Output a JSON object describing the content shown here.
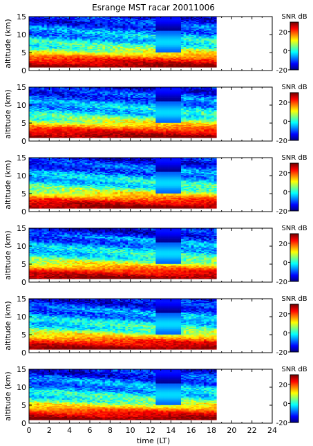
{
  "chart_data": {
    "type": "heatmap",
    "title": "Esrange MST racar 20011006",
    "xlabel": "time (LT)",
    "x_ticks": [
      "0",
      "2",
      "4",
      "6",
      "8",
      "10",
      "12",
      "14",
      "16",
      "18",
      "20",
      "22",
      "24"
    ],
    "xlim": [
      0,
      24
    ],
    "data_time_range": [
      0,
      18.5
    ],
    "colormap": "jet",
    "panels": [
      {
        "ylabel": "altitude (km)",
        "ylim": [
          0,
          15
        ],
        "y_ticks": [
          "0",
          "5",
          "10",
          "15"
        ],
        "colorbar": {
          "label": "SNR dB",
          "range": [
            -20,
            30
          ],
          "ticks": [
            "-20",
            "0",
            "20"
          ]
        },
        "snr_profile_db": [
          {
            "alt_km": 1,
            "snr": 30
          },
          {
            "alt_km": 2,
            "snr": 26
          },
          {
            "alt_km": 3,
            "snr": 22
          },
          {
            "alt_km": 4,
            "snr": 16
          },
          {
            "alt_km": 5,
            "snr": 10
          },
          {
            "alt_km": 6,
            "snr": 4
          },
          {
            "alt_km": 7,
            "snr": 0
          },
          {
            "alt_km": 8,
            "snr": -2
          },
          {
            "alt_km": 9,
            "snr": -4
          },
          {
            "alt_km": 10,
            "snr": -6
          },
          {
            "alt_km": 12,
            "snr": -10
          },
          {
            "alt_km": 14,
            "snr": -14
          }
        ]
      },
      {
        "ylabel": "altitude (km)",
        "ylim": [
          0,
          15
        ],
        "y_ticks": [
          "0",
          "5",
          "10",
          "15"
        ],
        "colorbar": {
          "label": "SNR dB",
          "range": [
            -20,
            30
          ],
          "ticks": [
            "-20",
            "0",
            "20"
          ]
        },
        "snr_profile_db": [
          {
            "alt_km": 1,
            "snr": 30
          },
          {
            "alt_km": 2,
            "snr": 26
          },
          {
            "alt_km": 3,
            "snr": 22
          },
          {
            "alt_km": 4,
            "snr": 16
          },
          {
            "alt_km": 5,
            "snr": 10
          },
          {
            "alt_km": 6,
            "snr": 4
          },
          {
            "alt_km": 7,
            "snr": 0
          },
          {
            "alt_km": 8,
            "snr": -2
          },
          {
            "alt_km": 9,
            "snr": -4
          },
          {
            "alt_km": 10,
            "snr": -6
          },
          {
            "alt_km": 12,
            "snr": -10
          },
          {
            "alt_km": 14,
            "snr": -14
          }
        ]
      },
      {
        "ylabel": "altitude (km)",
        "ylim": [
          0,
          15
        ],
        "y_ticks": [
          "0",
          "5",
          "10",
          "15"
        ],
        "colorbar": {
          "label": "SNR dB",
          "range": [
            -20,
            30
          ],
          "ticks": [
            "-20",
            "0",
            "20"
          ]
        },
        "snr_profile_db": [
          {
            "alt_km": 1,
            "snr": 30
          },
          {
            "alt_km": 2,
            "snr": 26
          },
          {
            "alt_km": 3,
            "snr": 22
          },
          {
            "alt_km": 4,
            "snr": 16
          },
          {
            "alt_km": 5,
            "snr": 10
          },
          {
            "alt_km": 6,
            "snr": 4
          },
          {
            "alt_km": 7,
            "snr": 0
          },
          {
            "alt_km": 8,
            "snr": -2
          },
          {
            "alt_km": 9,
            "snr": -4
          },
          {
            "alt_km": 10,
            "snr": -6
          },
          {
            "alt_km": 12,
            "snr": -10
          },
          {
            "alt_km": 14,
            "snr": -14
          }
        ]
      },
      {
        "ylabel": "altitude (km)",
        "ylim": [
          0,
          15
        ],
        "y_ticks": [
          "0",
          "5",
          "10",
          "15"
        ],
        "colorbar": {
          "label": "SNR dB",
          "range": [
            -20,
            30
          ],
          "ticks": [
            "-20",
            "0",
            "20"
          ]
        },
        "snr_profile_db": [
          {
            "alt_km": 1,
            "snr": 30
          },
          {
            "alt_km": 2,
            "snr": 26
          },
          {
            "alt_km": 3,
            "snr": 22
          },
          {
            "alt_km": 4,
            "snr": 16
          },
          {
            "alt_km": 5,
            "snr": 10
          },
          {
            "alt_km": 6,
            "snr": 4
          },
          {
            "alt_km": 7,
            "snr": 0
          },
          {
            "alt_km": 8,
            "snr": -2
          },
          {
            "alt_km": 9,
            "snr": -4
          },
          {
            "alt_km": 10,
            "snr": -6
          },
          {
            "alt_km": 12,
            "snr": -10
          },
          {
            "alt_km": 14,
            "snr": -14
          }
        ]
      },
      {
        "ylabel": "altitude (km)",
        "ylim": [
          0,
          15
        ],
        "y_ticks": [
          "0",
          "5",
          "10",
          "15"
        ],
        "colorbar": {
          "label": "SNR dB",
          "range": [
            -20,
            30
          ],
          "ticks": [
            "-20",
            "0",
            "20"
          ]
        },
        "snr_profile_db": [
          {
            "alt_km": 1,
            "snr": 30
          },
          {
            "alt_km": 2,
            "snr": 26
          },
          {
            "alt_km": 3,
            "snr": 22
          },
          {
            "alt_km": 4,
            "snr": 16
          },
          {
            "alt_km": 5,
            "snr": 10
          },
          {
            "alt_km": 6,
            "snr": 4
          },
          {
            "alt_km": 7,
            "snr": 0
          },
          {
            "alt_km": 8,
            "snr": -2
          },
          {
            "alt_km": 9,
            "snr": -4
          },
          {
            "alt_km": 10,
            "snr": -6
          },
          {
            "alt_km": 12,
            "snr": -10
          },
          {
            "alt_km": 14,
            "snr": -14
          }
        ]
      },
      {
        "ylabel": "altitude (km)",
        "ylim": [
          0,
          15
        ],
        "y_ticks": [
          "0",
          "5",
          "10",
          "15"
        ],
        "colorbar": {
          "label": "SNR dB",
          "range": [
            -20,
            30
          ],
          "ticks": [
            "-20",
            "0",
            "20"
          ]
        },
        "snr_profile_db": [
          {
            "alt_km": 1,
            "snr": 30
          },
          {
            "alt_km": 2,
            "snr": 26
          },
          {
            "alt_km": 3,
            "snr": 22
          },
          {
            "alt_km": 4,
            "snr": 16
          },
          {
            "alt_km": 5,
            "snr": 10
          },
          {
            "alt_km": 6,
            "snr": 4
          },
          {
            "alt_km": 7,
            "snr": 0
          },
          {
            "alt_km": 8,
            "snr": -2
          },
          {
            "alt_km": 9,
            "snr": -4
          },
          {
            "alt_km": 10,
            "snr": -6
          },
          {
            "alt_km": 12,
            "snr": -10
          },
          {
            "alt_km": 14,
            "snr": -14
          }
        ]
      }
    ]
  }
}
